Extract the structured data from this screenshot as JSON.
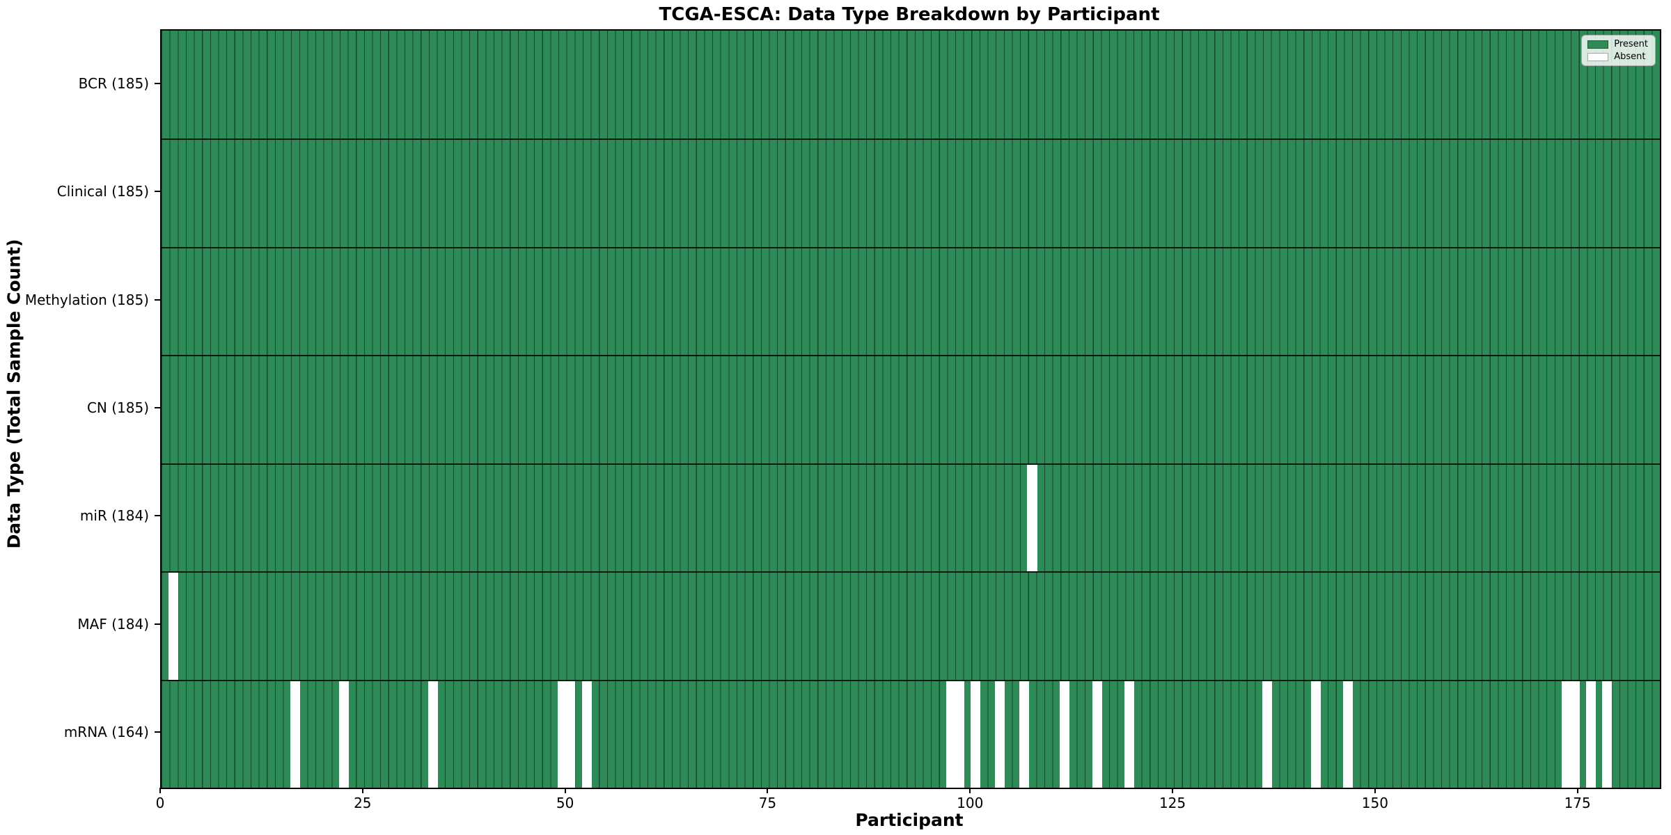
{
  "chart_data": {
    "type": "heatmap",
    "title": "TCGA-ESCA: Data Type Breakdown by Participant",
    "xlabel": "Participant",
    "ylabel": "Data Type (Total Sample Count)",
    "n_participants": 185,
    "x_ticks": [
      0,
      25,
      50,
      75,
      100,
      125,
      150,
      175
    ],
    "x_range": [
      0,
      185
    ],
    "grid": "per-cell vertical borders, heavy horizontal row separators",
    "legend_position": "upper right",
    "legend": [
      {
        "label": "Present",
        "color": "#2e8b57"
      },
      {
        "label": "Absent",
        "color": "#ffffff"
      }
    ],
    "colors": {
      "present_fill": "#2e8b57",
      "cell_border": "rgba(0,30,15,0.6)",
      "absent_fill": "#ffffff",
      "frame": "#000000"
    },
    "rows": [
      {
        "label": "BCR (185)",
        "data_type": "BCR",
        "present_count": 185,
        "absent_participants": []
      },
      {
        "label": "Clinical (185)",
        "data_type": "Clinical",
        "present_count": 185,
        "absent_participants": []
      },
      {
        "label": "Methylation (185)",
        "data_type": "Methylation",
        "present_count": 185,
        "absent_participants": []
      },
      {
        "label": "CN (185)",
        "data_type": "CN",
        "present_count": 185,
        "absent_participants": []
      },
      {
        "label": "miR (184)",
        "data_type": "miR",
        "present_count": 184,
        "absent_participants": [
          107
        ]
      },
      {
        "label": "MAF (184)",
        "data_type": "MAF",
        "present_count": 184,
        "absent_participants": [
          1
        ]
      },
      {
        "label": "mRNA (164)",
        "data_type": "mRNA",
        "present_count": 164,
        "absent_participants": [
          16,
          22,
          33,
          49,
          50,
          52,
          97,
          98,
          100,
          103,
          106,
          111,
          115,
          119,
          136,
          142,
          146,
          173,
          174,
          176,
          178
        ]
      }
    ]
  }
}
